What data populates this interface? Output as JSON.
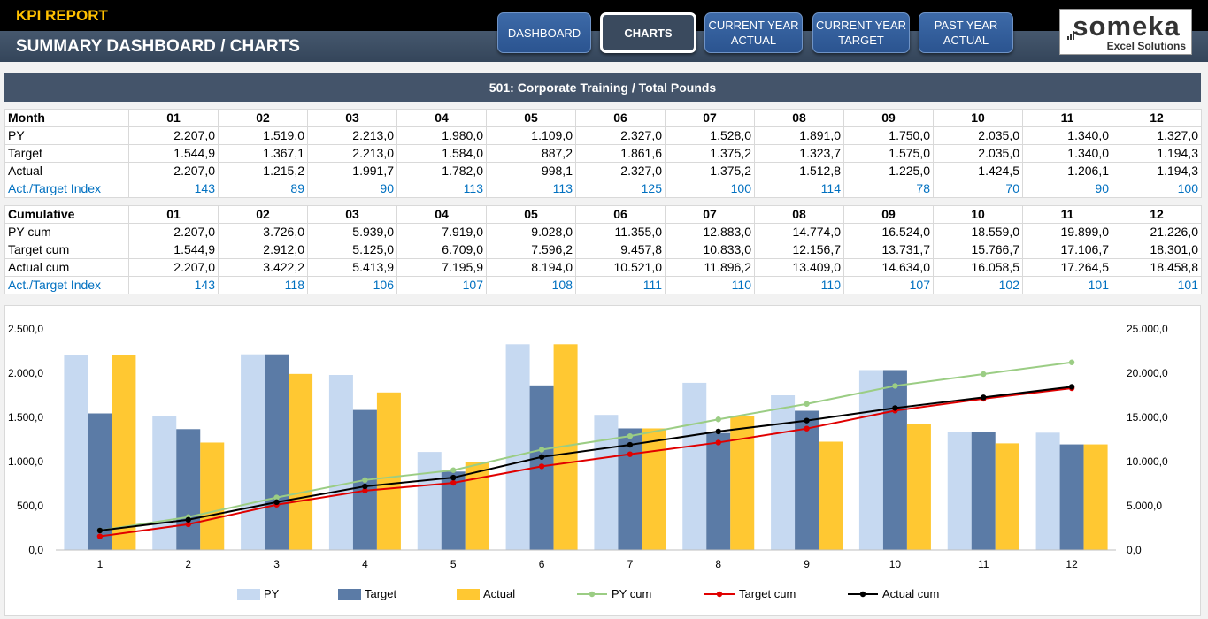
{
  "header": {
    "app_title": "KPI REPORT",
    "page_title": "SUMMARY DASHBOARD / CHARTS",
    "nav": [
      {
        "line1": "DASHBOARD",
        "line2": ""
      },
      {
        "line1": "CHARTS",
        "line2": ""
      },
      {
        "line1": "CURRENT YEAR",
        "line2": "ACTUAL"
      },
      {
        "line1": "CURRENT YEAR",
        "line2": "TARGET"
      },
      {
        "line1": "PAST YEAR",
        "line2": "ACTUAL"
      }
    ],
    "logo_main": "someka",
    "logo_sub": "Excel Solutions"
  },
  "banner": "501: Corporate Training / Total Pounds",
  "monthly_table": {
    "header_label": "Month",
    "months": [
      "01",
      "02",
      "03",
      "04",
      "05",
      "06",
      "07",
      "08",
      "09",
      "10",
      "11",
      "12"
    ],
    "rows": [
      {
        "label": "PY",
        "values": [
          "2.207,0",
          "1.519,0",
          "2.213,0",
          "1.980,0",
          "1.109,0",
          "2.327,0",
          "1.528,0",
          "1.891,0",
          "1.750,0",
          "2.035,0",
          "1.340,0",
          "1.327,0"
        ]
      },
      {
        "label": "Target",
        "values": [
          "1.544,9",
          "1.367,1",
          "2.213,0",
          "1.584,0",
          "887,2",
          "1.861,6",
          "1.375,2",
          "1.323,7",
          "1.575,0",
          "2.035,0",
          "1.340,0",
          "1.194,3"
        ]
      },
      {
        "label": "Actual",
        "values": [
          "2.207,0",
          "1.215,2",
          "1.991,7",
          "1.782,0",
          "998,1",
          "2.327,0",
          "1.375,2",
          "1.512,8",
          "1.225,0",
          "1.424,5",
          "1.206,1",
          "1.194,3"
        ]
      },
      {
        "label": "Act./Target Index",
        "values": [
          "143",
          "89",
          "90",
          "113",
          "113",
          "125",
          "100",
          "114",
          "78",
          "70",
          "90",
          "100"
        ]
      }
    ]
  },
  "cumulative_table": {
    "header_label": "Cumulative",
    "months": [
      "01",
      "02",
      "03",
      "04",
      "05",
      "06",
      "07",
      "08",
      "09",
      "10",
      "11",
      "12"
    ],
    "rows": [
      {
        "label": "PY cum",
        "values": [
          "2.207,0",
          "3.726,0",
          "5.939,0",
          "7.919,0",
          "9.028,0",
          "11.355,0",
          "12.883,0",
          "14.774,0",
          "16.524,0",
          "18.559,0",
          "19.899,0",
          "21.226,0"
        ]
      },
      {
        "label": "Target cum",
        "values": [
          "1.544,9",
          "2.912,0",
          "5.125,0",
          "6.709,0",
          "7.596,2",
          "9.457,8",
          "10.833,0",
          "12.156,7",
          "13.731,7",
          "15.766,7",
          "17.106,7",
          "18.301,0"
        ]
      },
      {
        "label": "Actual cum",
        "values": [
          "2.207,0",
          "3.422,2",
          "5.413,9",
          "7.195,9",
          "8.194,0",
          "10.521,0",
          "11.896,2",
          "13.409,0",
          "14.634,0",
          "16.058,5",
          "17.264,5",
          "18.458,8"
        ]
      },
      {
        "label": "Act./Target Index",
        "values": [
          "143",
          "118",
          "106",
          "107",
          "108",
          "111",
          "110",
          "110",
          "107",
          "102",
          "101",
          "101"
        ]
      }
    ]
  },
  "chart_data": {
    "type": "bar",
    "categories": [
      "1",
      "2",
      "3",
      "4",
      "5",
      "6",
      "7",
      "8",
      "9",
      "10",
      "11",
      "12"
    ],
    "y_left": {
      "min": 0,
      "max": 2500,
      "ticks": [
        "0,0",
        "500,0",
        "1.000,0",
        "1.500,0",
        "2.000,0",
        "2.500,0"
      ]
    },
    "y_right": {
      "min": 0,
      "max": 25000,
      "ticks": [
        "0,0",
        "5.000,0",
        "10.000,0",
        "15.000,0",
        "20.000,0",
        "25.000,0"
      ]
    },
    "grid": false,
    "legend_position": "bottom",
    "series": [
      {
        "name": "PY",
        "kind": "bar",
        "axis": "left",
        "color": "#c6d9f1",
        "values": [
          2207.0,
          1519.0,
          2213.0,
          1980.0,
          1109.0,
          2327.0,
          1528.0,
          1891.0,
          1750.0,
          2035.0,
          1340.0,
          1327.0
        ]
      },
      {
        "name": "Target",
        "kind": "bar",
        "axis": "left",
        "color": "#5b7ba6",
        "values": [
          1544.9,
          1367.1,
          2213.0,
          1584.0,
          887.2,
          1861.6,
          1375.2,
          1323.7,
          1575.0,
          2035.0,
          1340.0,
          1194.3
        ]
      },
      {
        "name": "Actual",
        "kind": "bar",
        "axis": "left",
        "color": "#ffc832",
        "values": [
          2207.0,
          1215.2,
          1991.7,
          1782.0,
          998.1,
          2327.0,
          1375.2,
          1512.8,
          1225.0,
          1424.5,
          1206.1,
          1194.3
        ]
      },
      {
        "name": "PY cum",
        "kind": "line",
        "axis": "right",
        "color": "#9bcd84",
        "values": [
          2207.0,
          3726.0,
          5939.0,
          7919.0,
          9028.0,
          11355.0,
          12883.0,
          14774.0,
          16524.0,
          18559.0,
          19899.0,
          21226.0
        ]
      },
      {
        "name": "Target cum",
        "kind": "line",
        "axis": "right",
        "color": "#e00000",
        "values": [
          1544.9,
          2912.0,
          5125.0,
          6709.0,
          7596.2,
          9457.8,
          10833.0,
          12156.7,
          13731.7,
          15766.7,
          17106.7,
          18301.0
        ]
      },
      {
        "name": "Actual cum",
        "kind": "line",
        "axis": "right",
        "color": "#000000",
        "values": [
          2207.0,
          3422.2,
          5413.9,
          7195.9,
          8194.0,
          10521.0,
          11896.2,
          13409.0,
          14634.0,
          16058.5,
          17264.5,
          18458.8
        ]
      }
    ]
  }
}
